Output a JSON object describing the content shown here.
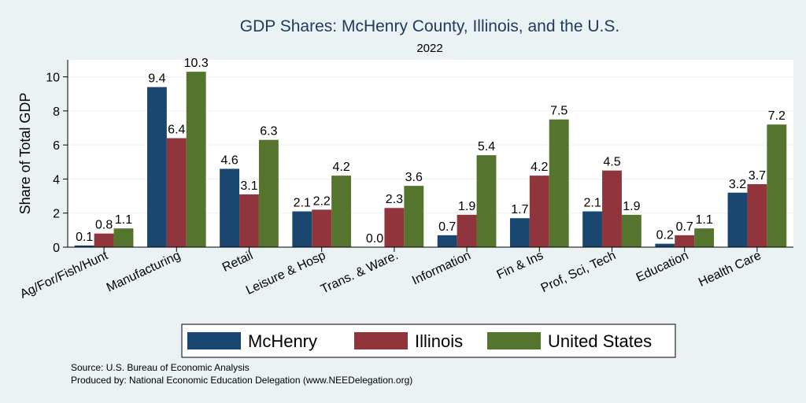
{
  "chart_data": {
    "type": "bar",
    "title": "GDP Shares: McHenry County, Illinois, and the U.S.",
    "subtitle": "2022",
    "xlabel": "",
    "ylabel": "Share of Total GDP",
    "ylim": [
      0,
      11
    ],
    "yticks": [
      0,
      2,
      4,
      6,
      8,
      10
    ],
    "grid": true,
    "legend_position": "bottom",
    "categories": [
      "Ag/For/Fish/Hunt",
      "Manufacturing",
      "Retail",
      "Leisure & Hosp",
      "Trans. & Ware.",
      "Information",
      "Fin & Ins",
      "Prof, Sci, Tech",
      "Education",
      "Health Care"
    ],
    "series": [
      {
        "name": "McHenry",
        "color": "#1a476f",
        "values": [
          0.1,
          9.4,
          4.6,
          2.1,
          0.0,
          0.7,
          1.7,
          2.1,
          0.2,
          3.2
        ],
        "labels": [
          "0.1",
          "9.4",
          "4.6",
          "2.1",
          "0.0",
          "0.7",
          "1.7",
          "2.1",
          "0.2",
          "3.2"
        ]
      },
      {
        "name": "Illinois",
        "color": "#90353b",
        "values": [
          0.8,
          6.4,
          3.1,
          2.2,
          2.3,
          1.9,
          4.2,
          4.5,
          0.7,
          3.7
        ],
        "labels": [
          "0.8",
          "6.4",
          "3.1",
          "2.2",
          "2.3",
          "1.9",
          "4.2",
          "4.5",
          "0.7",
          "3.7"
        ]
      },
      {
        "name": "United States",
        "color": "#55752f",
        "values": [
          1.1,
          10.3,
          6.3,
          4.2,
          3.6,
          5.4,
          7.5,
          1.9,
          1.1,
          7.2
        ],
        "labels": [
          "1.1",
          "10.3",
          "6.3",
          "4.2",
          "3.6",
          "5.4",
          "7.5",
          "1.9",
          "1.1",
          "7.2"
        ]
      }
    ]
  },
  "notes": {
    "source": "Source: U.S. Bureau of Economic Analysis",
    "produced_by": "Produced by: National Economic Education Delegation (www.NEEDelegation.org)"
  }
}
